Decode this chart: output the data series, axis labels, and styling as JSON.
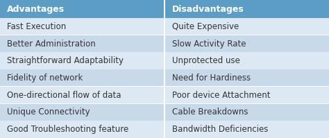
{
  "advantages": [
    "Fast Execution",
    "Better Administration",
    "Straightforward Adaptability",
    "Fidelity of network",
    "One-directional flow of data",
    "Unique Connectivity",
    "Good Troubleshooting feature"
  ],
  "disadvantages": [
    "Quite Expensive",
    "Slow Activity Rate",
    "Unprotected use",
    "Need for Hardiness",
    "Poor device Attachment",
    "Cable Breakdowns",
    "Bandwidth Deficiencies"
  ],
  "header_bg": "#5b9dc4",
  "header_text_color": "#ffffff",
  "row_bg_light": "#dce8f3",
  "row_bg_dark": "#c8daea",
  "divider_color": "#ffffff",
  "text_color": "#333333",
  "header_fontsize": 9.0,
  "row_fontsize": 8.5,
  "col1_header": "Advantages",
  "col2_header": "Disadvantages",
  "fig_bg": "#b8cfe0"
}
